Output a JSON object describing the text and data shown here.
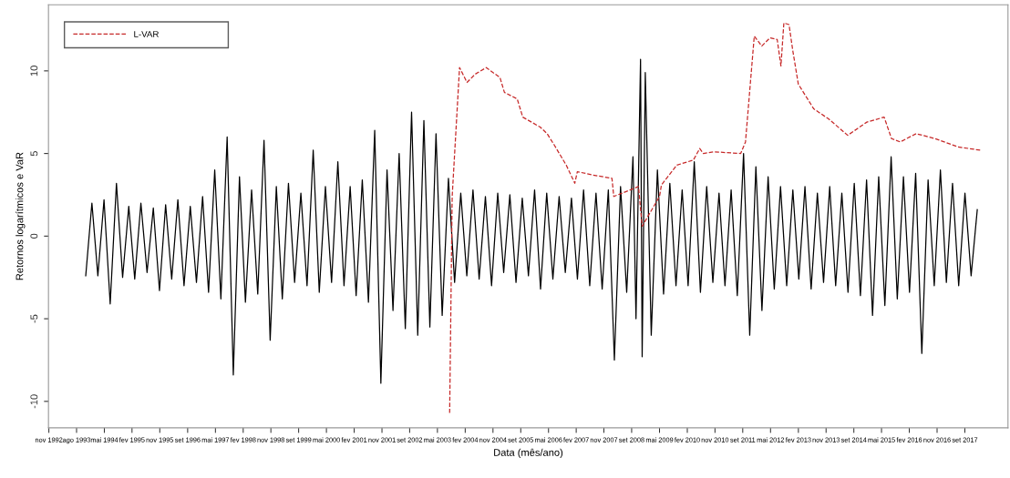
{
  "chart_data": {
    "type": "line",
    "xlabel": "Data (mês/ano)",
    "ylabel": "Retornos logarítmicos e VaR",
    "legend": "top left",
    "grid": false,
    "marker": "none",
    "xlim": [
      "1992-10-28",
      "2018-11-01"
    ],
    "ylim": [
      -11.6,
      14
    ],
    "yticks": [
      -10,
      -5,
      0,
      5,
      10
    ],
    "xticks": [
      {
        "value": "1992-11-01",
        "label": "nov 1992"
      },
      {
        "value": "1993-08-02",
        "label": "ago 1993"
      },
      {
        "value": "1994-05-04",
        "label": "mai 1994"
      },
      {
        "value": "1995-02-02",
        "label": "fev 1995"
      },
      {
        "value": "1995-11-04",
        "label": "nov 1995"
      },
      {
        "value": "1996-08-06",
        "label": "set 1996"
      },
      {
        "value": "1997-05-08",
        "label": "mai 1997"
      },
      {
        "value": "1998-02-07",
        "label": "fev 1998"
      },
      {
        "value": "1998-11-08",
        "label": "nov 1998"
      },
      {
        "value": "1999-08-10",
        "label": "set 1999"
      },
      {
        "value": "2000-05-11",
        "label": "mai 2000"
      },
      {
        "value": "2001-02-10",
        "label": "fev 2001"
      },
      {
        "value": "2001-11-12",
        "label": "nov 2001"
      },
      {
        "value": "2002-08-13",
        "label": "set 2002"
      },
      {
        "value": "2003-05-15",
        "label": "mai 2003"
      },
      {
        "value": "2004-02-14",
        "label": "fev 2004"
      },
      {
        "value": "2004-11-15",
        "label": "nov 2004"
      },
      {
        "value": "2005-08-17",
        "label": "set 2005"
      },
      {
        "value": "2006-05-19",
        "label": "mai 2006"
      },
      {
        "value": "2007-02-17",
        "label": "fev 2007"
      },
      {
        "value": "2007-11-18",
        "label": "nov 2007"
      },
      {
        "value": "2008-08-19",
        "label": "set 2008"
      },
      {
        "value": "2009-05-22",
        "label": "mai 2009"
      },
      {
        "value": "2010-02-21",
        "label": "fev 2010"
      },
      {
        "value": "2010-11-22",
        "label": "nov 2010"
      },
      {
        "value": "2011-08-24",
        "label": "set 2011"
      },
      {
        "value": "2012-05-25",
        "label": "mai 2012"
      },
      {
        "value": "2013-02-25",
        "label": "fev 2013"
      },
      {
        "value": "2013-11-26",
        "label": "nov 2013"
      },
      {
        "value": "2014-08-28",
        "label": "set 2014"
      },
      {
        "value": "2015-05-29",
        "label": "mai 2015"
      },
      {
        "value": "2016-02-28",
        "label": "fev 2016"
      },
      {
        "value": "2016-11-29",
        "label": "nov 2016"
      },
      {
        "value": "2017-08-31",
        "label": "set 2017"
      }
    ],
    "series": [
      {
        "color": "#000000",
        "line_style": "solid",
        "x": [
          "1993-11",
          "1994-01",
          "1994-03",
          "1994-05",
          "1994-07",
          "1994-09",
          "1994-11",
          "1995-01",
          "1995-03",
          "1995-05",
          "1995-07",
          "1995-09",
          "1995-11",
          "1996-01",
          "1996-03",
          "1996-05",
          "1996-07",
          "1996-09",
          "1996-11",
          "1997-01",
          "1997-03",
          "1997-05",
          "1997-07",
          "1997-09",
          "1997-11",
          "1998-01",
          "1998-03",
          "1998-05",
          "1998-07",
          "1998-09",
          "1998-11",
          "1999-01",
          "1999-03",
          "1999-05",
          "1999-07",
          "1999-09",
          "1999-11",
          "2000-01",
          "2000-03",
          "2000-05",
          "2000-07",
          "2000-09",
          "2000-11",
          "2001-01",
          "2001-03",
          "2001-05",
          "2001-07",
          "2001-09",
          "2001-11",
          "2002-01",
          "2002-03",
          "2002-05",
          "2002-07",
          "2002-09",
          "2002-11",
          "2003-01",
          "2003-03",
          "2003-05",
          "2003-07",
          "2003-09",
          "2003-11",
          "2004-01",
          "2004-03",
          "2004-05",
          "2004-07",
          "2004-09",
          "2004-11",
          "2005-01",
          "2005-03",
          "2005-05",
          "2005-07",
          "2005-09",
          "2005-11",
          "2006-01",
          "2006-03",
          "2006-05",
          "2006-07",
          "2006-09",
          "2006-11",
          "2007-01",
          "2007-03",
          "2007-05",
          "2007-07",
          "2007-09",
          "2007-11",
          "2008-01",
          "2008-03",
          "2008-05",
          "2008-07",
          "2008-09",
          "2008-10",
          "2008-11-15",
          "2008-12-01",
          "2009-01",
          "2009-03",
          "2009-05",
          "2009-07",
          "2009-09",
          "2009-11",
          "2010-01",
          "2010-03",
          "2010-05",
          "2010-07",
          "2010-09",
          "2010-11",
          "2011-01",
          "2011-03",
          "2011-05",
          "2011-07",
          "2011-09",
          "2011-11",
          "2012-01",
          "2012-03",
          "2012-05",
          "2012-07",
          "2012-09",
          "2012-11",
          "2013-01",
          "2013-03",
          "2013-05",
          "2013-07",
          "2013-09",
          "2013-11",
          "2014-01",
          "2014-03",
          "2014-05",
          "2014-07",
          "2014-09",
          "2014-11",
          "2015-01",
          "2015-03",
          "2015-05",
          "2015-07",
          "2015-09",
          "2015-11",
          "2016-01",
          "2016-03",
          "2016-05",
          "2016-07",
          "2016-09",
          "2016-11",
          "2017-01",
          "2017-03",
          "2017-05",
          "2017-07",
          "2017-09",
          "2017-11",
          "2018-01"
        ],
        "values": [
          -2.4,
          2.0,
          -2.4,
          2.2,
          -4.1,
          3.2,
          -2.5,
          1.8,
          -2.6,
          2.0,
          -2.2,
          1.7,
          -3.3,
          1.9,
          -2.6,
          2.2,
          -3.0,
          1.8,
          -2.8,
          2.4,
          -3.4,
          4.0,
          -3.8,
          6.0,
          -8.4,
          3.6,
          -4.0,
          2.8,
          -3.5,
          5.8,
          -6.3,
          3.0,
          -3.8,
          3.2,
          -2.8,
          2.6,
          -3.0,
          5.2,
          -3.4,
          3.0,
          -2.8,
          4.5,
          -3.0,
          3.0,
          -3.6,
          3.4,
          -4.0,
          6.4,
          -8.9,
          4.0,
          -4.5,
          5.0,
          -5.6,
          7.5,
          -6.0,
          7.0,
          -5.5,
          6.2,
          -4.8,
          3.5,
          -2.8,
          2.6,
          -2.4,
          2.8,
          -2.6,
          2.4,
          -3.0,
          2.6,
          -2.2,
          2.5,
          -2.8,
          2.3,
          -2.4,
          2.8,
          -3.2,
          2.6,
          -2.6,
          2.4,
          -2.2,
          2.3,
          -2.6,
          2.8,
          -3.0,
          2.6,
          -3.2,
          2.8,
          -7.5,
          3.0,
          -3.4,
          4.8,
          -5.0,
          10.7,
          -7.3,
          9.9,
          -6.0,
          4.0,
          -3.5,
          3.2,
          -3.0,
          2.8,
          -3.0,
          4.5,
          -3.4,
          3.0,
          -2.8,
          2.6,
          -3.0,
          2.8,
          -3.6,
          5.0,
          -6.0,
          4.2,
          -4.5,
          3.6,
          -3.2,
          3.0,
          -3.0,
          2.8,
          -2.6,
          3.0,
          -3.2,
          2.6,
          -2.8,
          3.0,
          -3.0,
          2.6,
          -3.4,
          3.2,
          -3.6,
          3.4,
          -4.8,
          3.6,
          -4.2,
          4.8,
          -3.8,
          3.6,
          -3.4,
          3.8,
          -7.1,
          3.4,
          -3.0,
          4.0,
          -2.8,
          3.2,
          -3.0,
          2.6,
          -2.4,
          1.6
        ]
      },
      {
        "name": "L-VAR",
        "color": "#c62828",
        "line_style": "dashed",
        "x": [
          "2003-09-13",
          "2003-10-08",
          "2003-12-20",
          "2004-03-03",
          "2004-05-23",
          "2004-09-09",
          "2005-01-23",
          "2005-03-08",
          "2005-07-13",
          "2005-09-06",
          "2006-02-25",
          "2006-05-05",
          "2006-07-16",
          "2006-11-10",
          "2007-02-03",
          "2007-02-28",
          "2007-07-31",
          "2008-02-06",
          "2008-02-24",
          "2008-10-26",
          "2008-12-01",
          "2009-05-22",
          "2009-06-10",
          "2009-11-10",
          "2010-04-22",
          "2010-06-24",
          "2010-07-30",
          "2010-11-14",
          "2011-08-04",
          "2011-09-20",
          "2011-12-16",
          "2012-02-28",
          "2012-05-19",
          "2012-07-30",
          "2012-09-05",
          "2012-10-04",
          "2012-11-24",
          "2013-01-01",
          "2013-02-24",
          "2013-07-27",
          "2013-12-20",
          "2014-06-28",
          "2015-01-04",
          "2015-06-24",
          "2015-09-05",
          "2015-12-01",
          "2016-05-05",
          "2016-11-10",
          "2017-06-24",
          "2018-01-30"
        ],
        "values": [
          -10.7,
          2.4,
          10.2,
          9.3,
          9.8,
          10.2,
          9.6,
          8.7,
          8.3,
          7.2,
          6.6,
          6.2,
          5.5,
          4.3,
          3.2,
          3.9,
          3.7,
          3.5,
          2.4,
          3.0,
          0.6,
          2.4,
          3.1,
          4.3,
          4.6,
          5.3,
          5.0,
          5.1,
          5.0,
          5.7,
          12.1,
          11.5,
          12.0,
          11.9,
          10.3,
          12.9,
          12.8,
          11.2,
          9.2,
          7.7,
          7.1,
          6.1,
          6.9,
          7.2,
          5.9,
          5.7,
          6.2,
          5.9,
          5.4,
          5.2
        ]
      }
    ]
  }
}
